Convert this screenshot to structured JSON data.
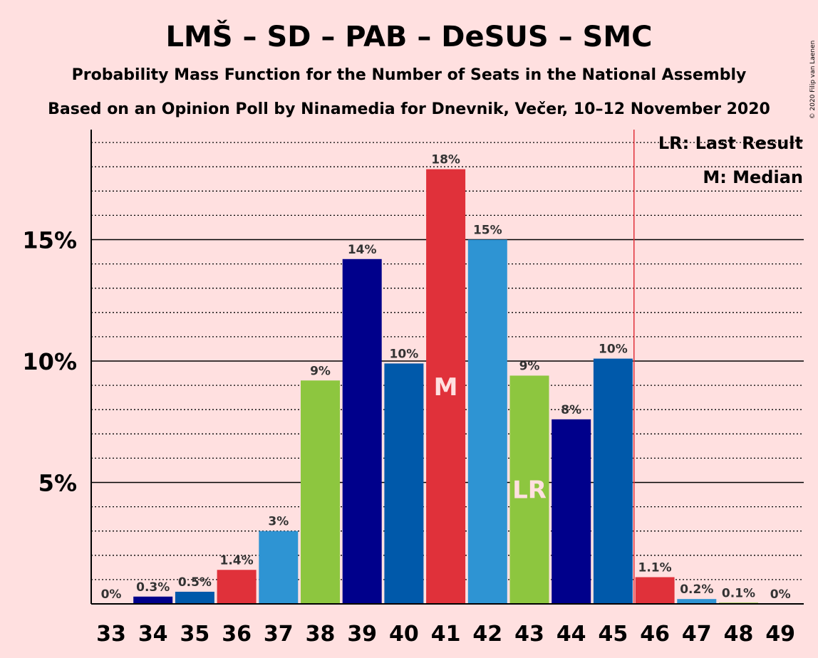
{
  "title": "LMŠ – SD – PAB – DeSUS – SMC",
  "subtitle1": "Probability Mass Function for the Number of Seats in the National Assembly",
  "subtitle2": "Based on an Opinion Poll by Ninamedia for Dnevnik, Večer, 10–12 November 2020",
  "copyright": "© 2020 Filip van Laenen",
  "legend": {
    "lr": "LR: Last Result",
    "median": "M: Median"
  },
  "colors": {
    "background": "#FFE0E0",
    "median_line": "#E0313A",
    "grid": "#000000"
  },
  "chart_data": {
    "type": "bar",
    "categories": [
      "33",
      "34",
      "35",
      "36",
      "37",
      "38",
      "39",
      "40",
      "41",
      "42",
      "43",
      "44",
      "45",
      "46",
      "47",
      "48",
      "49"
    ],
    "values": [
      0,
      0.3,
      0.5,
      1.4,
      3.0,
      9.2,
      14.2,
      9.9,
      17.9,
      15.0,
      9.4,
      7.6,
      10.1,
      1.1,
      0.2,
      0.05,
      0
    ],
    "labels": [
      "0%",
      "0.3%",
      "0.5%",
      "1.4%",
      "3%",
      "9%",
      "14%",
      "10%",
      "18%",
      "15%",
      "9%",
      "8%",
      "10%",
      "1.1%",
      "0.2%",
      "0.1%",
      "0%"
    ],
    "bar_colors": [
      "#E0313A",
      "#00008B",
      "#0059AA",
      "#E0313A",
      "#2E94D3",
      "#8DC63F",
      "#00008B",
      "#0059AA",
      "#E0313A",
      "#2E94D3",
      "#8DC63F",
      "#00008B",
      "#0059AA",
      "#E0313A",
      "#2E94D3",
      "#8DC63F",
      "#00008B"
    ],
    "ylim": [
      0,
      19.5
    ],
    "yticks": [
      5,
      10,
      15
    ],
    "ytick_labels": [
      "5%",
      "10%",
      "15%"
    ],
    "minor_grid_step": 1,
    "majority_threshold_after": "45",
    "median_seat": "41",
    "median_marker": "M",
    "last_result_seat": "43",
    "last_result_marker": "LR",
    "grid": true,
    "legend_position": "top-right"
  }
}
